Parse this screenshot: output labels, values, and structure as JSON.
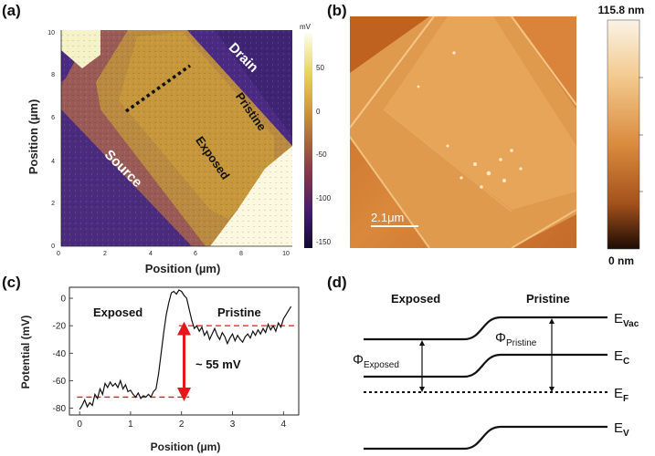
{
  "figure": {
    "panels": {
      "a": {
        "label": "(a)",
        "xlabel": "Position (µm)",
        "ylabel": "Position (µm)",
        "xticks": [
          "0",
          "2",
          "4",
          "6",
          "8",
          "10"
        ],
        "yticks": [
          "10",
          "8",
          "6",
          "4",
          "2",
          "0"
        ],
        "colorbar_unit": "mV",
        "colorbar_ticks": [
          "50",
          "0",
          "-50",
          "-100",
          "-150"
        ],
        "region_labels": {
          "drain": "Drain",
          "source": "Source",
          "pristine": "Pristine",
          "exposed": "Exposed"
        }
      },
      "b": {
        "label": "(b)",
        "scalebar": "2.1μm",
        "colorbar_max": "115.8 nm",
        "colorbar_min": "0 nm"
      },
      "c": {
        "label": "(c)",
        "xlabel": "Position (μm)",
        "ylabel": "Potential (mV)",
        "xticks": [
          "0",
          "1",
          "2",
          "3",
          "4"
        ],
        "yticks": [
          "0",
          "-20",
          "-40",
          "-60",
          "-80"
        ],
        "left_label": "Exposed",
        "right_label": "Pristine",
        "annotation": "~ 55 mV"
      },
      "d": {
        "label": "(d)",
        "left_label": "Exposed",
        "right_label": "Pristine",
        "phi_left_symbol": "Φ",
        "phi_left_sub": "Exposed",
        "phi_right_symbol": "Φ",
        "phi_right_sub": "Pristine",
        "levels": [
          {
            "main": "E",
            "sub": "Vac"
          },
          {
            "main": "E",
            "sub": "C"
          },
          {
            "main": "E",
            "sub": "F"
          },
          {
            "main": "E",
            "sub": "V"
          }
        ]
      }
    }
  },
  "chart_data": {
    "type": "line",
    "xlabel": "Position (μm)",
    "ylabel": "Potential (mV)",
    "xlim": [
      -0.2,
      4.3
    ],
    "ylim": [
      -85,
      8
    ],
    "reference_lines": [
      -72,
      -20
    ],
    "annotation": "~ 55 mV",
    "x": [
      0.0,
      0.05,
      0.1,
      0.15,
      0.2,
      0.25,
      0.3,
      0.35,
      0.4,
      0.45,
      0.5,
      0.55,
      0.6,
      0.65,
      0.7,
      0.75,
      0.8,
      0.85,
      0.9,
      0.95,
      1.0,
      1.05,
      1.1,
      1.15,
      1.2,
      1.25,
      1.3,
      1.35,
      1.4,
      1.45,
      1.5,
      1.55,
      1.6,
      1.65,
      1.7,
      1.75,
      1.8,
      1.85,
      1.9,
      1.95,
      2.0,
      2.05,
      2.1,
      2.15,
      2.2,
      2.25,
      2.3,
      2.35,
      2.4,
      2.45,
      2.5,
      2.55,
      2.6,
      2.65,
      2.7,
      2.75,
      2.8,
      2.85,
      2.9,
      2.95,
      3.0,
      3.05,
      3.1,
      3.15,
      3.2,
      3.25,
      3.3,
      3.35,
      3.4,
      3.45,
      3.5,
      3.55,
      3.6,
      3.65,
      3.7,
      3.75,
      3.8,
      3.85,
      3.9,
      3.95,
      4.0,
      4.05,
      4.1,
      4.15
    ],
    "y": [
      -81,
      -78,
      -74,
      -79,
      -76,
      -78,
      -70,
      -73,
      -66,
      -70,
      -62,
      -65,
      -61,
      -64,
      -62,
      -65,
      -60,
      -66,
      -63,
      -68,
      -67,
      -70,
      -72,
      -69,
      -73,
      -71,
      -72,
      -70,
      -72,
      -68,
      -66,
      -55,
      -40,
      -25,
      -12,
      -3,
      4,
      5,
      3,
      6,
      5,
      2,
      0,
      -8,
      -16,
      -22,
      -20,
      -24,
      -21,
      -27,
      -24,
      -30,
      -26,
      -22,
      -27,
      -30,
      -25,
      -28,
      -33,
      -29,
      -26,
      -31,
      -27,
      -30,
      -32,
      -28,
      -26,
      -29,
      -24,
      -27,
      -23,
      -26,
      -22,
      -25,
      -19,
      -23,
      -20,
      -24,
      -18,
      -21,
      -15,
      -12,
      -9,
      -6
    ]
  }
}
